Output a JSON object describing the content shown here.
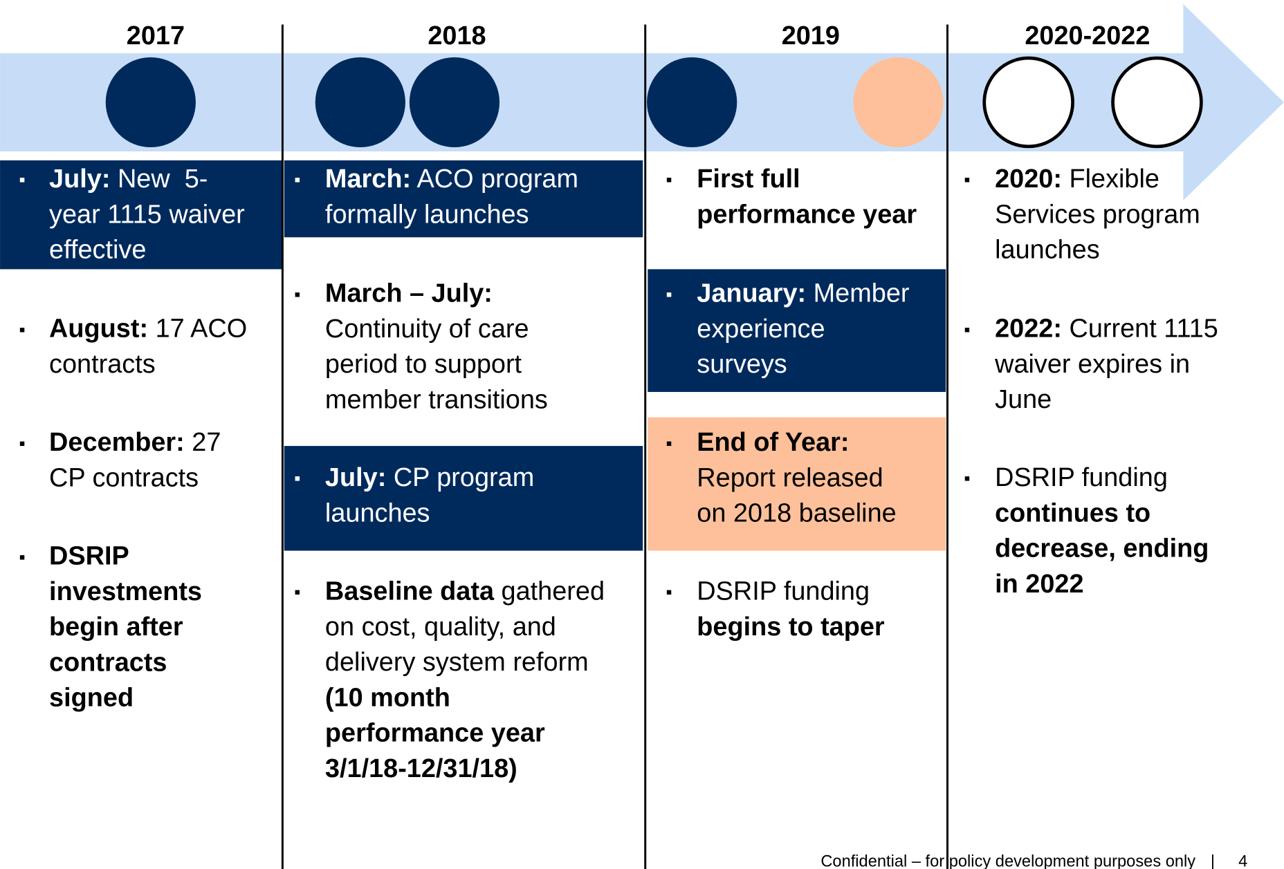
{
  "timeline": {
    "columns": [
      {
        "year": "2017",
        "items": [
          {
            "fill": "#002a5c",
            "lines": [
              [
                {
                  "text": "July:",
                  "bold": true
                },
                {
                  "text": " New  5-"
                }
              ],
              [
                {
                  "text": "year 1115 waiver"
                }
              ],
              [
                {
                  "text": "effective"
                }
              ]
            ]
          },
          {
            "lines": [
              [
                {
                  "text": "August:",
                  "bold": true
                },
                {
                  "text": " 17 ACO"
                }
              ],
              [
                {
                  "text": "contracts"
                }
              ]
            ]
          },
          {
            "lines": [
              [
                {
                  "text": "December:",
                  "bold": true
                },
                {
                  "text": " 27"
                }
              ],
              [
                {
                  "text": "CP contracts"
                }
              ]
            ]
          },
          {
            "lines": [
              [
                {
                  "text": "DSRIP",
                  "bold": true
                }
              ],
              [
                {
                  "text": "investments",
                  "bold": true
                }
              ],
              [
                {
                  "text": "begin after",
                  "bold": true
                }
              ],
              [
                {
                  "text": "contracts",
                  "bold": true
                }
              ],
              [
                {
                  "text": "signed",
                  "bold": true
                }
              ]
            ]
          }
        ]
      },
      {
        "year": "2018",
        "items": [
          {
            "fill": "#002a5c",
            "lines": [
              [
                {
                  "text": "March:",
                  "bold": true
                },
                {
                  "text": " ACO program"
                }
              ],
              [
                {
                  "text": "formally launches"
                }
              ]
            ]
          },
          {
            "lines": [
              [
                {
                  "text": "March – July:",
                  "bold": true
                }
              ],
              [
                {
                  "text": "Continuity of care"
                }
              ],
              [
                {
                  "text": "period to support"
                }
              ],
              [
                {
                  "text": "member transitions"
                }
              ]
            ]
          },
          {
            "fill": "#002a5c",
            "lines": [
              [
                {
                  "text": "July:",
                  "bold": true
                },
                {
                  "text": " CP program"
                }
              ],
              [
                {
                  "text": "launches"
                }
              ]
            ]
          },
          {
            "lines": [
              [
                {
                  "text": "Baseline data",
                  "bold": true
                },
                {
                  "text": " gathered"
                }
              ],
              [
                {
                  "text": "on cost, quality, and"
                }
              ],
              [
                {
                  "text": "delivery system reform"
                }
              ],
              [
                {
                  "text": "(10 month",
                  "bold": true
                }
              ],
              [
                {
                  "text": "performance year",
                  "bold": true
                }
              ],
              [
                {
                  "text": "3/1/18-12/31/18)",
                  "bold": true
                }
              ]
            ]
          }
        ]
      },
      {
        "year": "2019",
        "items": [
          {
            "lines": [
              [
                {
                  "text": "First full",
                  "bold": true
                }
              ],
              [
                {
                  "text": "performance year",
                  "bold": true
                }
              ]
            ]
          },
          {
            "fill": "#002a5c",
            "lines": [
              [
                {
                  "text": "January:",
                  "bold": true
                },
                {
                  "text": " Member"
                }
              ],
              [
                {
                  "text": "experience"
                }
              ],
              [
                {
                  "text": "surveys"
                }
              ]
            ]
          },
          {
            "fill": "#fdc09a",
            "lines": [
              [
                {
                  "text": "End of Year:",
                  "bold": true
                }
              ],
              [
                {
                  "text": "Report released"
                }
              ],
              [
                {
                  "text": "on 2018 baseline"
                }
              ]
            ]
          },
          {
            "lines": [
              [
                {
                  "text": "DSRIP funding"
                }
              ],
              [
                {
                  "text": "begins to taper",
                  "bold": true
                }
              ]
            ]
          }
        ]
      },
      {
        "year": "2020-2022",
        "items": [
          {
            "lines": [
              [
                {
                  "text": "2020:",
                  "bold": true
                },
                {
                  "text": " Flexible"
                }
              ],
              [
                {
                  "text": "Services program"
                }
              ],
              [
                {
                  "text": "launches"
                }
              ]
            ]
          },
          {
            "lines": [
              [
                {
                  "text": "2022:",
                  "bold": true
                },
                {
                  "text": " Current 1115"
                }
              ],
              [
                {
                  "text": "waiver expires in"
                }
              ],
              [
                {
                  "text": "June"
                }
              ]
            ]
          },
          {
            "lines": [
              [
                {
                  "text": "DSRIP funding"
                }
              ],
              [
                {
                  "text": "continues to",
                  "bold": true
                }
              ],
              [
                {
                  "text": "decrease, ending",
                  "bold": true
                }
              ],
              [
                {
                  "text": "in 2022",
                  "bold": true
                }
              ]
            ]
          }
        ]
      }
    ],
    "bullet": "▪"
  },
  "footer": {
    "text": "Confidential – for policy development purposes only",
    "separator": "|",
    "page": "4"
  }
}
